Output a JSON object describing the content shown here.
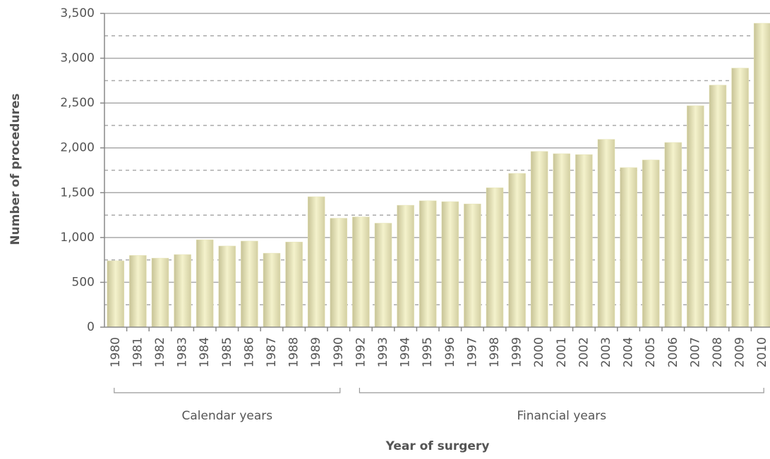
{
  "chart_data": {
    "type": "bar",
    "categories": [
      "1980",
      "1981",
      "1982",
      "1983",
      "1984",
      "1985",
      "1986",
      "1987",
      "1988",
      "1989",
      "1990",
      "1992",
      "1993",
      "1994",
      "1995",
      "1996",
      "1997",
      "1998",
      "1999",
      "2000",
      "2001",
      "2002",
      "2003",
      "2004",
      "2005",
      "2006",
      "2007",
      "2008",
      "2009",
      "2010"
    ],
    "values": [
      740,
      800,
      770,
      810,
      975,
      905,
      960,
      825,
      950,
      1455,
      1215,
      1230,
      1160,
      1360,
      1410,
      1400,
      1375,
      1555,
      1715,
      1960,
      1935,
      1925,
      2095,
      1780,
      1865,
      2060,
      2470,
      2700,
      2890,
      3390
    ],
    "color": "#e6e4b6",
    "ylim": [
      0,
      3500
    ],
    "yticks": [
      0,
      500,
      {
        "value": 1000,
        "label": "1,000"
      },
      {
        "value": 1500,
        "label": "1,500"
      },
      {
        "value": 2000,
        "label": "2,000"
      },
      {
        "value": 2500,
        "label": "2,500"
      },
      {
        "value": 3000,
        "label": "3,000"
      },
      {
        "value": 3500,
        "label": "3,500"
      }
    ],
    "minor_yticks": [
      250,
      750,
      1250,
      1750,
      2250,
      2750,
      3250
    ],
    "grid": true,
    "y_label": "Number of procedures",
    "x_label": "Year of surgery",
    "groups": [
      {
        "label": "Calendar years",
        "from": "1980",
        "to": "1990"
      },
      {
        "label": "Financial years",
        "from": "1992",
        "to": "2010"
      }
    ]
  }
}
